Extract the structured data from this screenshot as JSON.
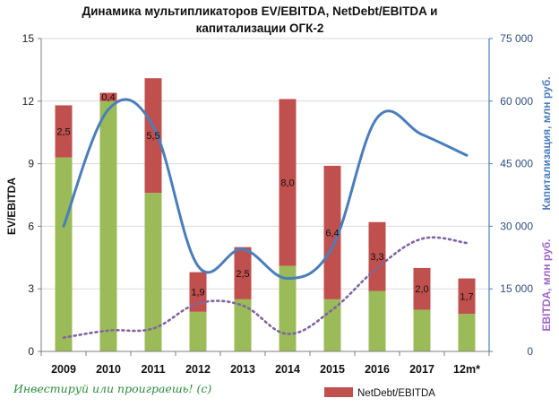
{
  "chart_data": {
    "type": "bar",
    "title_line1": "Динамика мультипликаторов EV/EBITDA, NetDebt/EBITDA и",
    "title_line2": "капитализации ОГК-2",
    "categories": [
      "2009",
      "2010",
      "2011",
      "2012",
      "2013",
      "2014",
      "2015",
      "2016",
      "2017",
      "12m*"
    ],
    "ylabel_left": "EV/EBITDA",
    "ylabel_right1": "Капитализация, млн руб.",
    "ylabel_right2": "EBITDA, млн руб.",
    "ylim_left": [
      0,
      15
    ],
    "ylim_right": [
      0,
      75000
    ],
    "left_ticks": [
      "0",
      "3",
      "6",
      "9",
      "12",
      "15"
    ],
    "right_ticks": [
      "0",
      "15 000",
      "30 000",
      "45 000",
      "60 000",
      "75 000"
    ],
    "grid": true,
    "legend_position": "bottom",
    "series": [
      {
        "name": "",
        "kind": "stacked-bar",
        "color": "#9bbb59",
        "values": [
          9.3,
          12.0,
          7.6,
          1.9,
          2.5,
          4.1,
          2.5,
          2.9,
          2.0,
          1.8
        ]
      },
      {
        "name": "NetDebt/EBITDA",
        "kind": "stacked-bar",
        "color": "#c0504d",
        "values": [
          2.5,
          0.4,
          5.5,
          1.9,
          2.5,
          8.0,
          6.4,
          3.3,
          2.0,
          1.7
        ],
        "labels": [
          "2,5",
          "0,4",
          "5,5",
          "1,9",
          "2,5",
          "8,0",
          "6,4",
          "3,3",
          "2,0",
          "1,7"
        ]
      },
      {
        "name": "",
        "kind": "line",
        "axis": "right",
        "color": "#4a7ebb",
        "values": [
          30000,
          58000,
          54000,
          20500,
          24500,
          17500,
          25000,
          56000,
          52000,
          47000
        ]
      },
      {
        "name": "",
        "kind": "dotted-line",
        "axis": "right",
        "color": "#8064a2",
        "values": [
          3300,
          5000,
          5500,
          11500,
          11000,
          4200,
          10000,
          20000,
          27000,
          26000
        ]
      }
    ]
  },
  "watermark": "Инвестируй или проиграешь! (с)",
  "colors": {
    "grid": "#d9d9d9",
    "axis": "#7f7f7f",
    "right_axis_line": "#4a7ebb"
  }
}
